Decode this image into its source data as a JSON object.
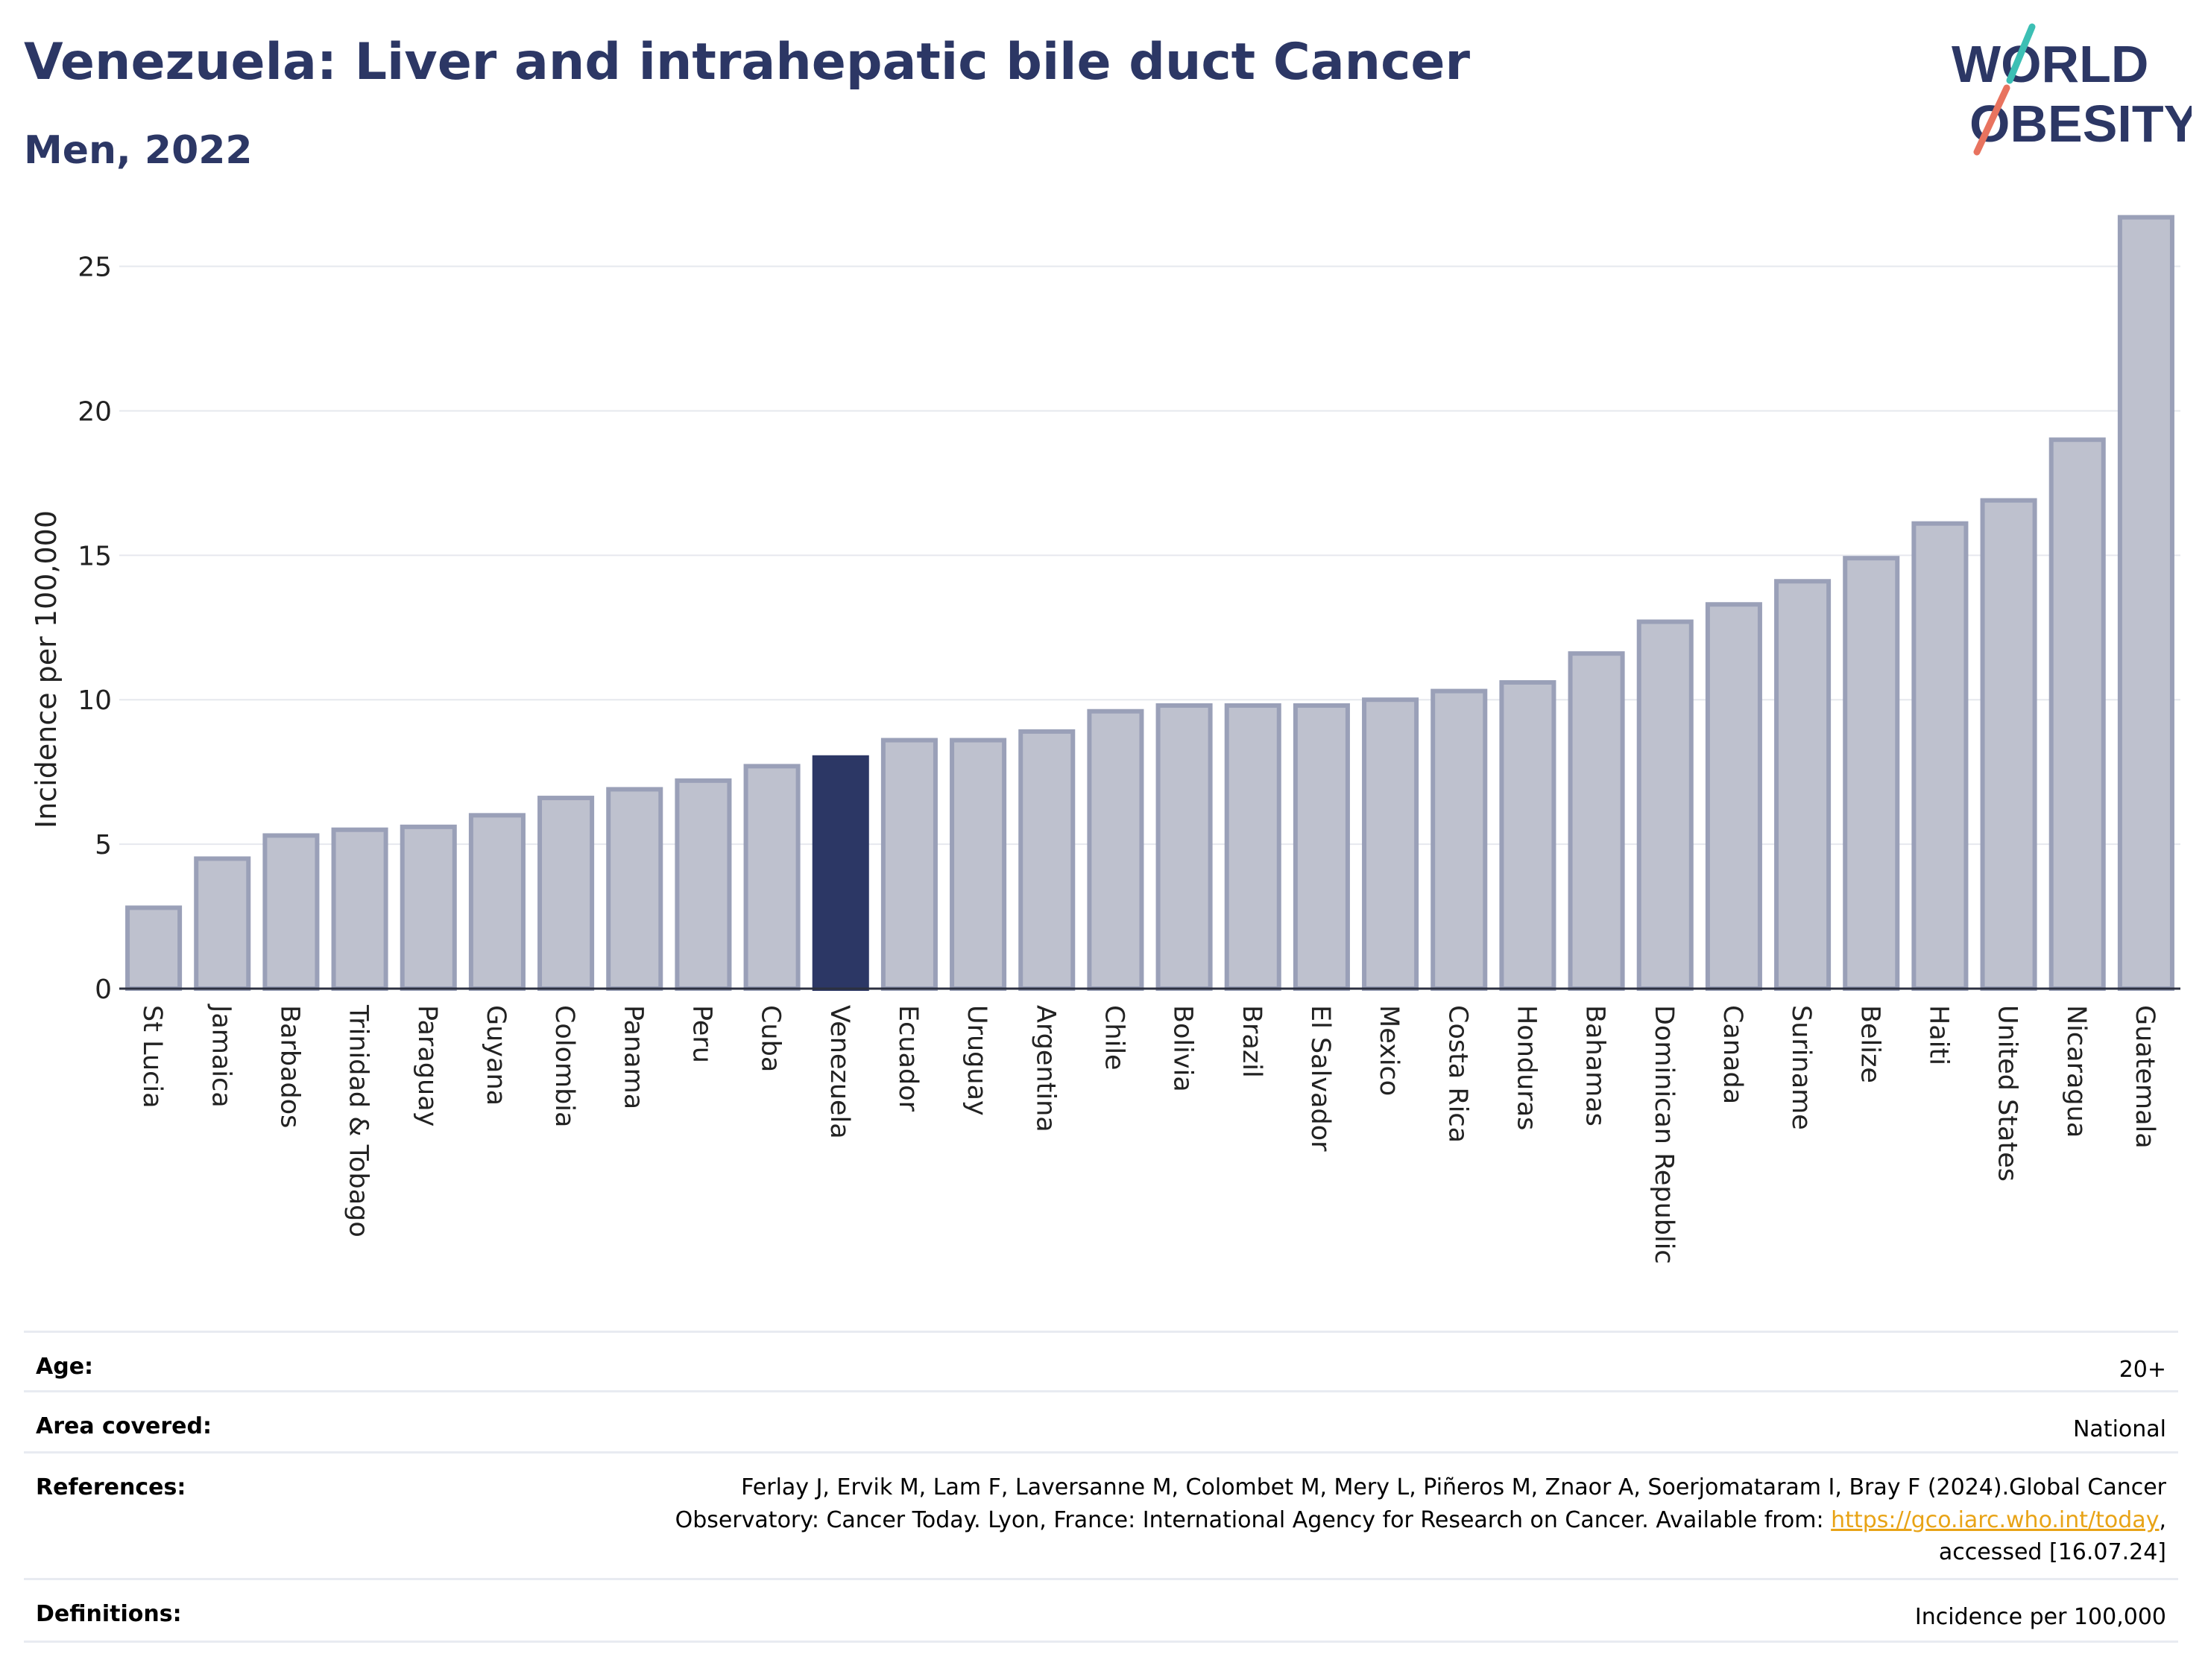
{
  "header": {
    "title": "Venezuela: Liver and intrahepatic bile duct Cancer",
    "subtitle": "Men, 2022"
  },
  "logo": {
    "line1": "WORLD",
    "line2": "OBESITY"
  },
  "colors": {
    "bar_fill": "#bec1ce",
    "bar_stroke": "#9aa0b8",
    "highlight": "#2c3765",
    "grid": "#e6e8ee",
    "logo_teal": "#3cbfb4",
    "logo_coral": "#e8735f"
  },
  "chart_data": {
    "type": "bar",
    "ylabel": "Incidence per 100,000",
    "ylim": [
      0,
      27
    ],
    "yticks": [
      0,
      5,
      10,
      15,
      20,
      25
    ],
    "highlight": "Venezuela",
    "categories": [
      "St Lucia",
      "Jamaica",
      "Barbados",
      "Trinidad & Tobago",
      "Paraguay",
      "Guyana",
      "Colombia",
      "Panama",
      "Peru",
      "Cuba",
      "Venezuela",
      "Ecuador",
      "Uruguay",
      "Argentina",
      "Chile",
      "Bolivia",
      "Brazil",
      "El Salvador",
      "Mexico",
      "Costa Rica",
      "Honduras",
      "Bahamas",
      "Dominican Republic",
      "Canada",
      "Suriname",
      "Belize",
      "Haiti",
      "United States",
      "Nicaragua",
      "Guatemala"
    ],
    "values": [
      2.8,
      4.5,
      5.3,
      5.5,
      5.6,
      6.0,
      6.6,
      6.9,
      7.2,
      7.7,
      8.0,
      8.6,
      8.6,
      8.9,
      9.6,
      9.8,
      9.8,
      9.8,
      10.0,
      10.3,
      10.6,
      11.6,
      12.7,
      13.3,
      14.1,
      14.9,
      16.1,
      16.9,
      19.0,
      26.7
    ]
  },
  "meta": {
    "age_label": "Age:",
    "age_value": "20+",
    "area_label": "Area covered:",
    "area_value": "National",
    "references_label": "References:",
    "references_line1": "Ferlay J, Ervik M, Lam F, Laversanne M, Colombet M, Mery L, Piñeros M, Znaor A, Soerjomataram I, Bray F (2024).Global Cancer",
    "references_line2_pre": "Observatory: Cancer Today. Lyon, France: International Agency for Research on Cancer. Available from: ",
    "references_link": "https://gco.iarc.who.int/today",
    "references_line2_post": ",",
    "references_line3": "accessed [16.07.24]",
    "definitions_label": "Definitions:",
    "definitions_value": "Incidence per 100,000"
  }
}
